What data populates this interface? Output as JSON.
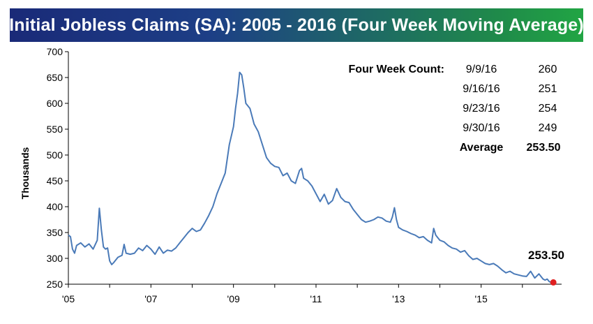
{
  "chart_data": {
    "type": "line",
    "title": "Initial Jobless Claims (SA): 2005 - 2016 (Four Week Moving Average)",
    "ylabel": "Thousands",
    "xlabel": "",
    "ylim": [
      250,
      700
    ],
    "xlim": [
      2005.0,
      2016.95
    ],
    "y_ticks": [
      250,
      300,
      350,
      400,
      450,
      500,
      550,
      600,
      650,
      700
    ],
    "x_ticks": [
      {
        "value": 2005,
        "label": "'05"
      },
      {
        "value": 2007,
        "label": "'07"
      },
      {
        "value": 2009,
        "label": "'09"
      },
      {
        "value": 2011,
        "label": "'11"
      },
      {
        "value": 2013,
        "label": "'13"
      },
      {
        "value": 2015,
        "label": "'15"
      }
    ],
    "grid": false,
    "series": [
      {
        "color": "#4a7ab8",
        "x": [
          2005.0,
          2005.05,
          2005.1,
          2005.15,
          2005.2,
          2005.3,
          2005.4,
          2005.5,
          2005.6,
          2005.7,
          2005.75,
          2005.8,
          2005.85,
          2005.9,
          2005.95,
          2006.0,
          2006.05,
          2006.1,
          2006.2,
          2006.3,
          2006.35,
          2006.4,
          2006.5,
          2006.6,
          2006.7,
          2006.8,
          2006.9,
          2007.0,
          2007.1,
          2007.2,
          2007.3,
          2007.4,
          2007.5,
          2007.6,
          2007.7,
          2007.8,
          2007.9,
          2008.0,
          2008.1,
          2008.2,
          2008.3,
          2008.4,
          2008.5,
          2008.6,
          2008.7,
          2008.8,
          2008.9,
          2009.0,
          2009.05,
          2009.1,
          2009.15,
          2009.2,
          2009.25,
          2009.3,
          2009.4,
          2009.5,
          2009.6,
          2009.7,
          2009.8,
          2009.9,
          2010.0,
          2010.1,
          2010.2,
          2010.3,
          2010.4,
          2010.5,
          2010.6,
          2010.65,
          2010.7,
          2010.8,
          2010.9,
          2011.0,
          2011.1,
          2011.2,
          2011.3,
          2011.4,
          2011.5,
          2011.6,
          2011.7,
          2011.8,
          2011.9,
          2012.0,
          2012.1,
          2012.2,
          2012.3,
          2012.4,
          2012.5,
          2012.6,
          2012.7,
          2012.8,
          2012.85,
          2012.9,
          2012.95,
          2013.0,
          2013.1,
          2013.2,
          2013.3,
          2013.4,
          2013.5,
          2013.6,
          2013.7,
          2013.8,
          2013.85,
          2013.9,
          2014.0,
          2014.1,
          2014.2,
          2014.3,
          2014.4,
          2014.5,
          2014.6,
          2014.7,
          2014.8,
          2014.9,
          2015.0,
          2015.1,
          2015.2,
          2015.3,
          2015.4,
          2015.5,
          2015.6,
          2015.7,
          2015.8,
          2015.9,
          2016.0,
          2016.1,
          2016.2,
          2016.3,
          2016.4,
          2016.5,
          2016.55,
          2016.6,
          2016.65,
          2016.7,
          2016.75
        ],
        "values": [
          345,
          342,
          318,
          310,
          325,
          330,
          322,
          328,
          318,
          335,
          397,
          355,
          322,
          318,
          320,
          295,
          288,
          292,
          302,
          306,
          327,
          310,
          308,
          310,
          320,
          315,
          325,
          318,
          308,
          322,
          310,
          316,
          314,
          320,
          330,
          340,
          350,
          358,
          352,
          355,
          368,
          383,
          400,
          425,
          445,
          465,
          520,
          555,
          590,
          620,
          660,
          655,
          630,
          600,
          590,
          560,
          545,
          520,
          495,
          484,
          478,
          476,
          460,
          465,
          450,
          445,
          470,
          474,
          455,
          450,
          440,
          425,
          410,
          424,
          405,
          412,
          435,
          418,
          410,
          408,
          395,
          385,
          375,
          370,
          372,
          375,
          380,
          378,
          372,
          370,
          380,
          398,
          375,
          360,
          355,
          352,
          348,
          345,
          340,
          342,
          335,
          330,
          358,
          345,
          335,
          332,
          325,
          320,
          318,
          312,
          315,
          305,
          298,
          300,
          295,
          290,
          288,
          290,
          285,
          278,
          272,
          275,
          270,
          268,
          266,
          265,
          275,
          262,
          270,
          260,
          258,
          260,
          255,
          253.5,
          253.5
        ]
      }
    ],
    "info_box": {
      "header": "Four Week Count:",
      "rows": [
        {
          "date": "9/9/16",
          "value": "260"
        },
        {
          "date": "9/16/16",
          "value": "251"
        },
        {
          "date": "9/23/16",
          "value": "254"
        },
        {
          "date": "9/30/16",
          "value": "249"
        }
      ],
      "average_label": "Average",
      "average_value": "253.50"
    },
    "end_label": "253.50",
    "end_marker_color": "#e02020"
  }
}
